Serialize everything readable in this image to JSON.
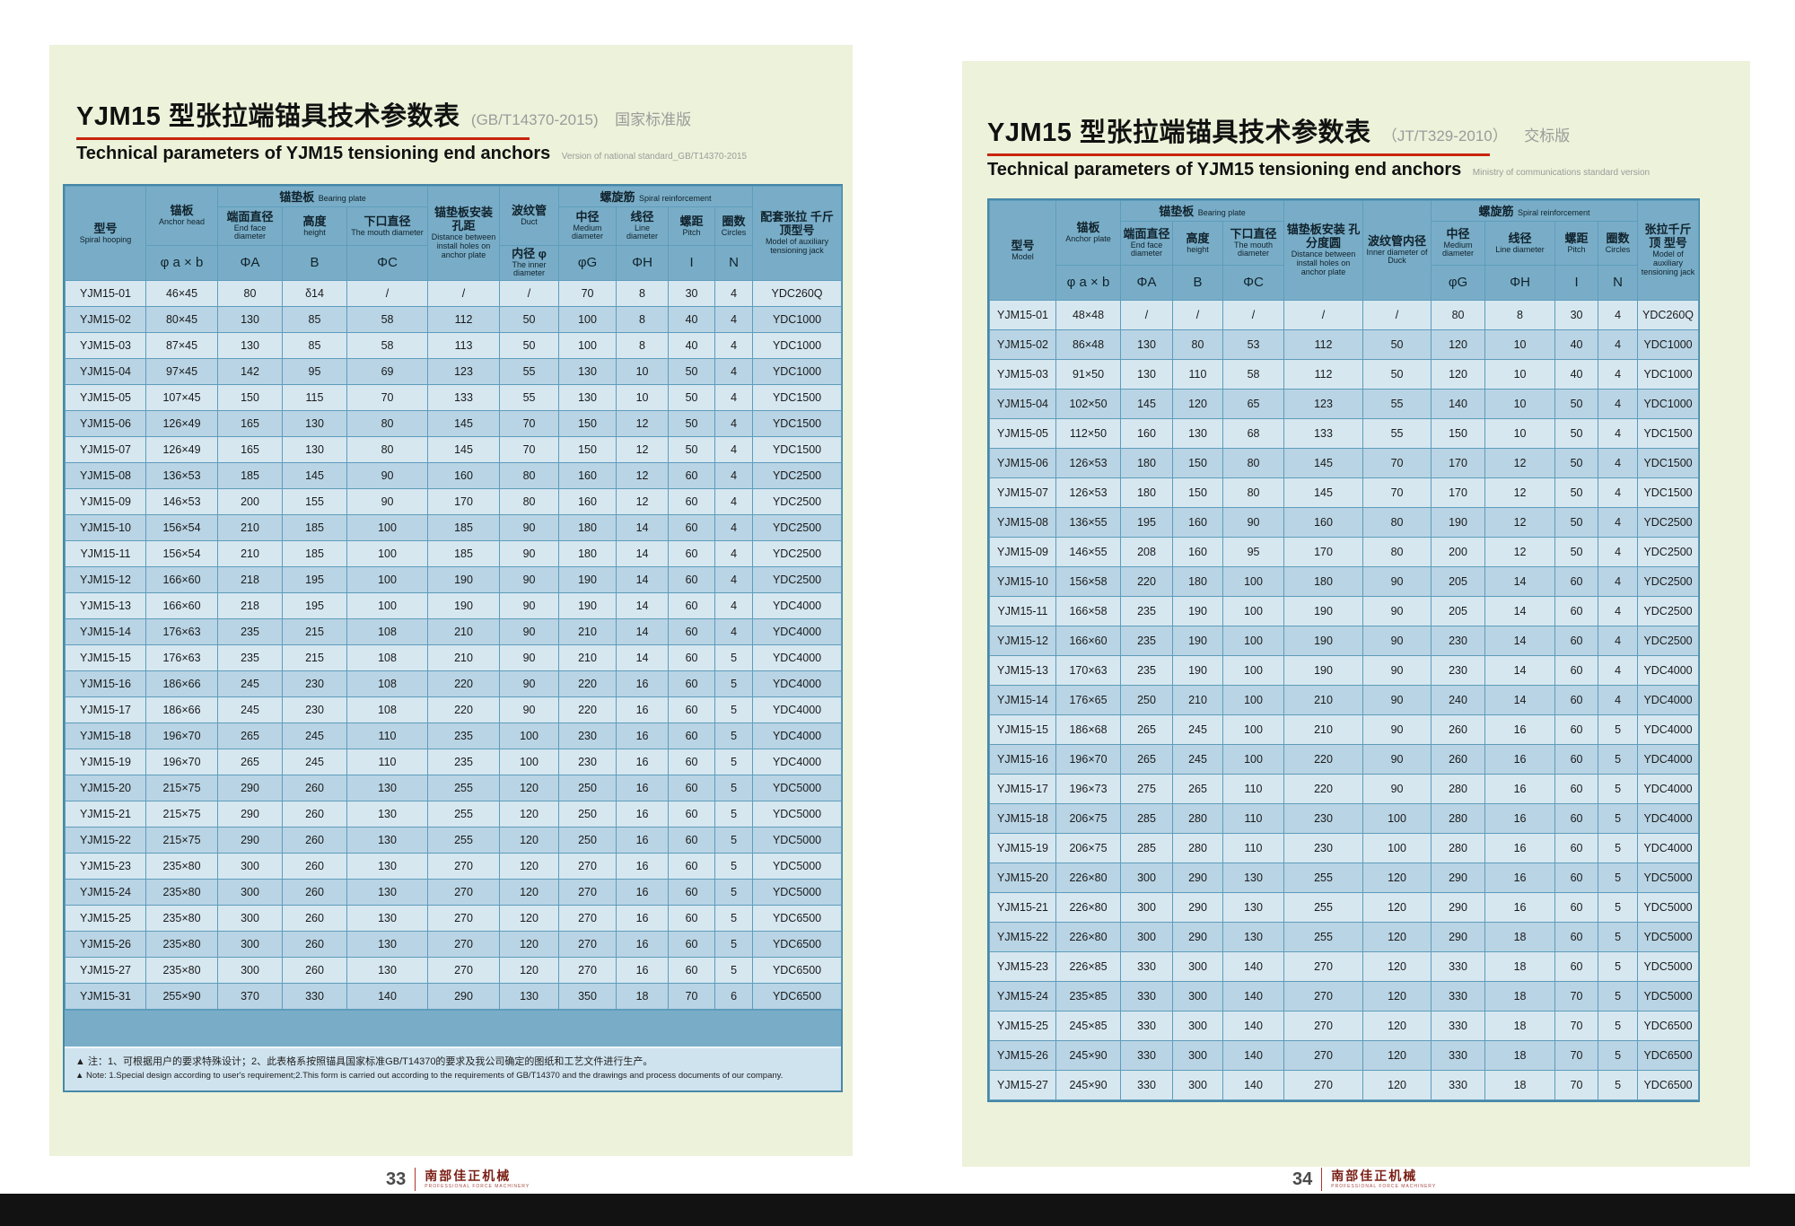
{
  "left_page": {
    "title_zh": "YJM15 型张拉端锚具技术参数表",
    "title_standard": "(GB/T14370-2015)",
    "title_edition": "国家标准版",
    "subtitle_en": "Technical parameters of YJM15 tensioning end anchors",
    "subtitle_note": "Version of national standard_GB/T14370-2015",
    "table": {
      "header": {
        "model": {
          "zh": "型号",
          "en": "Spiral hooping"
        },
        "anchor": {
          "zh": "锚板",
          "en": "Anchor head",
          "sym": "φ a × b"
        },
        "bearing_group": {
          "zh": "锚垫板",
          "en": "Bearing plate"
        },
        "end_face": {
          "zh": "端面直径",
          "en": "End face diameter",
          "sym": "ΦA"
        },
        "height": {
          "zh": "高度",
          "en": "height",
          "sym": "B"
        },
        "mouth": {
          "zh": "下口直径",
          "en": "The mouth diameter",
          "sym": "ΦC"
        },
        "install": {
          "zh": "锚垫板安装孔距",
          "en": "Distance between install holes on anchor plate"
        },
        "duct": {
          "zh": "波纹管",
          "en": "Duct",
          "sub_zh": "内径 φ",
          "sub_en": "The inner diameter"
        },
        "spiral_group": {
          "zh": "螺旋筋",
          "en": "Spiral reinforcement"
        },
        "medium": {
          "zh": "中径",
          "en": "Medium diameter",
          "sym": "φG"
        },
        "line": {
          "zh": "线径",
          "en": "Line diameter",
          "sym": "ΦH"
        },
        "pitch": {
          "zh": "螺距",
          "en": "Pitch",
          "sym": "I"
        },
        "circles": {
          "zh": "圈数",
          "en": "Circles",
          "sym": "N"
        },
        "jack": {
          "zh": "配套张拉 千斤顶型号",
          "en": "Model of auxiliary tensioning jack"
        }
      },
      "rows": [
        [
          "YJM15-01",
          "46×45",
          "80",
          "δ14",
          "/",
          "/",
          "/",
          "70",
          "8",
          "30",
          "4",
          "YDC260Q"
        ],
        [
          "YJM15-02",
          "80×45",
          "130",
          "85",
          "58",
          "112",
          "50",
          "100",
          "8",
          "40",
          "4",
          "YDC1000"
        ],
        [
          "YJM15-03",
          "87×45",
          "130",
          "85",
          "58",
          "113",
          "50",
          "100",
          "8",
          "40",
          "4",
          "YDC1000"
        ],
        [
          "YJM15-04",
          "97×45",
          "142",
          "95",
          "69",
          "123",
          "55",
          "130",
          "10",
          "50",
          "4",
          "YDC1000"
        ],
        [
          "YJM15-05",
          "107×45",
          "150",
          "115",
          "70",
          "133",
          "55",
          "130",
          "10",
          "50",
          "4",
          "YDC1500"
        ],
        [
          "YJM15-06",
          "126×49",
          "165",
          "130",
          "80",
          "145",
          "70",
          "150",
          "12",
          "50",
          "4",
          "YDC1500"
        ],
        [
          "YJM15-07",
          "126×49",
          "165",
          "130",
          "80",
          "145",
          "70",
          "150",
          "12",
          "50",
          "4",
          "YDC1500"
        ],
        [
          "YJM15-08",
          "136×53",
          "185",
          "145",
          "90",
          "160",
          "80",
          "160",
          "12",
          "60",
          "4",
          "YDC2500"
        ],
        [
          "YJM15-09",
          "146×53",
          "200",
          "155",
          "90",
          "170",
          "80",
          "160",
          "12",
          "60",
          "4",
          "YDC2500"
        ],
        [
          "YJM15-10",
          "156×54",
          "210",
          "185",
          "100",
          "185",
          "90",
          "180",
          "14",
          "60",
          "4",
          "YDC2500"
        ],
        [
          "YJM15-11",
          "156×54",
          "210",
          "185",
          "100",
          "185",
          "90",
          "180",
          "14",
          "60",
          "4",
          "YDC2500"
        ],
        [
          "YJM15-12",
          "166×60",
          "218",
          "195",
          "100",
          "190",
          "90",
          "190",
          "14",
          "60",
          "4",
          "YDC2500"
        ],
        [
          "YJM15-13",
          "166×60",
          "218",
          "195",
          "100",
          "190",
          "90",
          "190",
          "14",
          "60",
          "4",
          "YDC4000"
        ],
        [
          "YJM15-14",
          "176×63",
          "235",
          "215",
          "108",
          "210",
          "90",
          "210",
          "14",
          "60",
          "4",
          "YDC4000"
        ],
        [
          "YJM15-15",
          "176×63",
          "235",
          "215",
          "108",
          "210",
          "90",
          "210",
          "14",
          "60",
          "5",
          "YDC4000"
        ],
        [
          "YJM15-16",
          "186×66",
          "245",
          "230",
          "108",
          "220",
          "90",
          "220",
          "16",
          "60",
          "5",
          "YDC4000"
        ],
        [
          "YJM15-17",
          "186×66",
          "245",
          "230",
          "108",
          "220",
          "90",
          "220",
          "16",
          "60",
          "5",
          "YDC4000"
        ],
        [
          "YJM15-18",
          "196×70",
          "265",
          "245",
          "110",
          "235",
          "100",
          "230",
          "16",
          "60",
          "5",
          "YDC4000"
        ],
        [
          "YJM15-19",
          "196×70",
          "265",
          "245",
          "110",
          "235",
          "100",
          "230",
          "16",
          "60",
          "5",
          "YDC4000"
        ],
        [
          "YJM15-20",
          "215×75",
          "290",
          "260",
          "130",
          "255",
          "120",
          "250",
          "16",
          "60",
          "5",
          "YDC5000"
        ],
        [
          "YJM15-21",
          "215×75",
          "290",
          "260",
          "130",
          "255",
          "120",
          "250",
          "16",
          "60",
          "5",
          "YDC5000"
        ],
        [
          "YJM15-22",
          "215×75",
          "290",
          "260",
          "130",
          "255",
          "120",
          "250",
          "16",
          "60",
          "5",
          "YDC5000"
        ],
        [
          "YJM15-23",
          "235×80",
          "300",
          "260",
          "130",
          "270",
          "120",
          "270",
          "16",
          "60",
          "5",
          "YDC5000"
        ],
        [
          "YJM15-24",
          "235×80",
          "300",
          "260",
          "130",
          "270",
          "120",
          "270",
          "16",
          "60",
          "5",
          "YDC5000"
        ],
        [
          "YJM15-25",
          "235×80",
          "300",
          "260",
          "130",
          "270",
          "120",
          "270",
          "16",
          "60",
          "5",
          "YDC6500"
        ],
        [
          "YJM15-26",
          "235×80",
          "300",
          "260",
          "130",
          "270",
          "120",
          "270",
          "16",
          "60",
          "5",
          "YDC6500"
        ],
        [
          "YJM15-27",
          "235×80",
          "300",
          "260",
          "130",
          "270",
          "120",
          "270",
          "16",
          "60",
          "5",
          "YDC6500"
        ],
        [
          "YJM15-31",
          "255×90",
          "370",
          "330",
          "140",
          "290",
          "130",
          "350",
          "18",
          "70",
          "6",
          "YDC6500"
        ]
      ]
    },
    "notes": {
      "zh": "▲ 注：1、可根据用户的要求特殊设计；2、此表格系按照锚具国家标准GB/T14370的要求及我公司确定的图纸和工艺文件进行生产。",
      "en": "▲ Note: 1.Special design according to user's requirement;2.This form is carried out according to the requirements of GB/T14370 and the drawings and process documents of our company."
    }
  },
  "right_page": {
    "title_zh": "YJM15 型张拉端锚具技术参数表",
    "title_standard": "（JT/T329-2010）",
    "title_edition": "交标版",
    "subtitle_en": "Technical parameters of YJM15 tensioning end anchors",
    "subtitle_note": "Ministry of communications standard version",
    "table": {
      "header": {
        "model": {
          "zh": "型号",
          "en": "Model"
        },
        "anchor": {
          "zh": "锚板",
          "en": "Anchor plate",
          "sym": "φ a × b"
        },
        "bearing_group": {
          "zh": "锚垫板",
          "en": "Bearing plate"
        },
        "end_face": {
          "zh": "端面直径",
          "en": "End face diameter",
          "sym": "ΦA"
        },
        "height": {
          "zh": "高度",
          "en": "height",
          "sym": "B"
        },
        "mouth": {
          "zh": "下口直径",
          "en": "The mouth diameter",
          "sym": "ΦC"
        },
        "install": {
          "zh": "锚垫板安装 孔分度圆",
          "en": "Distance between install holes on anchor plate"
        },
        "duct": {
          "zh": "波纹管内径",
          "en": "Inner diameter of Duck"
        },
        "spiral_group": {
          "zh": "螺旋筋",
          "en": "Spiral reinforcement"
        },
        "medium": {
          "zh": "中径",
          "en": "Medium diameter",
          "sym": "φG"
        },
        "line": {
          "zh": "线径",
          "en": "Line diameter",
          "sym": "ΦH"
        },
        "pitch": {
          "zh": "螺距",
          "en": "Pitch",
          "sym": "I"
        },
        "circles": {
          "zh": "圈数",
          "en": "Circles",
          "sym": "N"
        },
        "jack": {
          "zh": "张拉千斤顶 型号",
          "en": "Model of auxiliary tensioning jack"
        }
      },
      "rows": [
        [
          "YJM15-01",
          "48×48",
          "/",
          "/",
          "/",
          "/",
          "/",
          "80",
          "8",
          "30",
          "4",
          "YDC260Q"
        ],
        [
          "YJM15-02",
          "86×48",
          "130",
          "80",
          "53",
          "112",
          "50",
          "120",
          "10",
          "40",
          "4",
          "YDC1000"
        ],
        [
          "YJM15-03",
          "91×50",
          "130",
          "110",
          "58",
          "112",
          "50",
          "120",
          "10",
          "40",
          "4",
          "YDC1000"
        ],
        [
          "YJM15-04",
          "102×50",
          "145",
          "120",
          "65",
          "123",
          "55",
          "140",
          "10",
          "50",
          "4",
          "YDC1000"
        ],
        [
          "YJM15-05",
          "112×50",
          "160",
          "130",
          "68",
          "133",
          "55",
          "150",
          "10",
          "50",
          "4",
          "YDC1500"
        ],
        [
          "YJM15-06",
          "126×53",
          "180",
          "150",
          "80",
          "145",
          "70",
          "170",
          "12",
          "50",
          "4",
          "YDC1500"
        ],
        [
          "YJM15-07",
          "126×53",
          "180",
          "150",
          "80",
          "145",
          "70",
          "170",
          "12",
          "50",
          "4",
          "YDC1500"
        ],
        [
          "YJM15-08",
          "136×55",
          "195",
          "160",
          "90",
          "160",
          "80",
          "190",
          "12",
          "50",
          "4",
          "YDC2500"
        ],
        [
          "YJM15-09",
          "146×55",
          "208",
          "160",
          "95",
          "170",
          "80",
          "200",
          "12",
          "50",
          "4",
          "YDC2500"
        ],
        [
          "YJM15-10",
          "156×58",
          "220",
          "180",
          "100",
          "180",
          "90",
          "205",
          "14",
          "60",
          "4",
          "YDC2500"
        ],
        [
          "YJM15-11",
          "166×58",
          "235",
          "190",
          "100",
          "190",
          "90",
          "205",
          "14",
          "60",
          "4",
          "YDC2500"
        ],
        [
          "YJM15-12",
          "166×60",
          "235",
          "190",
          "100",
          "190",
          "90",
          "230",
          "14",
          "60",
          "4",
          "YDC2500"
        ],
        [
          "YJM15-13",
          "170×63",
          "235",
          "190",
          "100",
          "190",
          "90",
          "230",
          "14",
          "60",
          "4",
          "YDC4000"
        ],
        [
          "YJM15-14",
          "176×65",
          "250",
          "210",
          "100",
          "210",
          "90",
          "240",
          "14",
          "60",
          "4",
          "YDC4000"
        ],
        [
          "YJM15-15",
          "186×68",
          "265",
          "245",
          "100",
          "210",
          "90",
          "260",
          "16",
          "60",
          "5",
          "YDC4000"
        ],
        [
          "YJM15-16",
          "196×70",
          "265",
          "245",
          "100",
          "220",
          "90",
          "260",
          "16",
          "60",
          "5",
          "YDC4000"
        ],
        [
          "YJM15-17",
          "196×73",
          "275",
          "265",
          "110",
          "220",
          "90",
          "280",
          "16",
          "60",
          "5",
          "YDC4000"
        ],
        [
          "YJM15-18",
          "206×75",
          "285",
          "280",
          "110",
          "230",
          "100",
          "280",
          "16",
          "60",
          "5",
          "YDC4000"
        ],
        [
          "YJM15-19",
          "206×75",
          "285",
          "280",
          "110",
          "230",
          "100",
          "280",
          "16",
          "60",
          "5",
          "YDC4000"
        ],
        [
          "YJM15-20",
          "226×80",
          "300",
          "290",
          "130",
          "255",
          "120",
          "290",
          "16",
          "60",
          "5",
          "YDC5000"
        ],
        [
          "YJM15-21",
          "226×80",
          "300",
          "290",
          "130",
          "255",
          "120",
          "290",
          "16",
          "60",
          "5",
          "YDC5000"
        ],
        [
          "YJM15-22",
          "226×80",
          "300",
          "290",
          "130",
          "255",
          "120",
          "290",
          "18",
          "60",
          "5",
          "YDC5000"
        ],
        [
          "YJM15-23",
          "226×85",
          "330",
          "300",
          "140",
          "270",
          "120",
          "330",
          "18",
          "60",
          "5",
          "YDC5000"
        ],
        [
          "YJM15-24",
          "235×85",
          "330",
          "300",
          "140",
          "270",
          "120",
          "330",
          "18",
          "70",
          "5",
          "YDC5000"
        ],
        [
          "YJM15-25",
          "245×85",
          "330",
          "300",
          "140",
          "270",
          "120",
          "330",
          "18",
          "70",
          "5",
          "YDC6500"
        ],
        [
          "YJM15-26",
          "245×90",
          "330",
          "300",
          "140",
          "270",
          "120",
          "330",
          "18",
          "70",
          "5",
          "YDC6500"
        ],
        [
          "YJM15-27",
          "245×90",
          "330",
          "300",
          "140",
          "270",
          "120",
          "330",
          "18",
          "70",
          "5",
          "YDC6500"
        ]
      ]
    }
  },
  "footer": {
    "left_number": "33",
    "right_number": "34",
    "logo": "南部佳正机械",
    "logo_sub": "PROFESSIONAL FORCE MACHINERY"
  }
}
